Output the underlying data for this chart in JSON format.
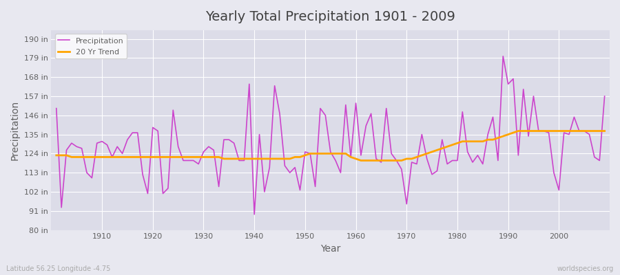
{
  "title": "Yearly Total Precipitation 1901 - 2009",
  "xlabel": "Year",
  "ylabel": "Precipitation",
  "subtitle": "Latitude 56.25 Longitude -4.75",
  "watermark": "worldspecies.org",
  "ylim": [
    80,
    195
  ],
  "yticks": [
    80,
    91,
    102,
    113,
    124,
    135,
    146,
    157,
    168,
    179,
    190
  ],
  "years": [
    1901,
    1902,
    1903,
    1904,
    1905,
    1906,
    1907,
    1908,
    1909,
    1910,
    1911,
    1912,
    1913,
    1914,
    1915,
    1916,
    1917,
    1918,
    1919,
    1920,
    1921,
    1922,
    1923,
    1924,
    1925,
    1926,
    1927,
    1928,
    1929,
    1930,
    1931,
    1932,
    1933,
    1934,
    1935,
    1936,
    1937,
    1938,
    1939,
    1940,
    1941,
    1942,
    1943,
    1944,
    1945,
    1946,
    1947,
    1948,
    1949,
    1950,
    1951,
    1952,
    1953,
    1954,
    1955,
    1956,
    1957,
    1958,
    1959,
    1960,
    1961,
    1962,
    1963,
    1964,
    1965,
    1966,
    1967,
    1968,
    1969,
    1970,
    1971,
    1972,
    1973,
    1974,
    1975,
    1976,
    1977,
    1978,
    1979,
    1980,
    1981,
    1982,
    1983,
    1984,
    1985,
    1986,
    1987,
    1988,
    1989,
    1990,
    1991,
    1992,
    1993,
    1994,
    1995,
    1996,
    1997,
    1998,
    1999,
    2000,
    2001,
    2002,
    2003,
    2004,
    2005,
    2006,
    2007,
    2008,
    2009
  ],
  "precip": [
    150,
    93,
    126,
    130,
    128,
    127,
    113,
    110,
    130,
    131,
    129,
    122,
    128,
    124,
    132,
    136,
    136,
    112,
    101,
    139,
    137,
    101,
    104,
    149,
    128,
    120,
    120,
    120,
    118,
    125,
    128,
    126,
    105,
    132,
    132,
    130,
    120,
    120,
    164,
    89,
    135,
    102,
    116,
    163,
    147,
    117,
    113,
    116,
    103,
    125,
    124,
    105,
    150,
    146,
    125,
    120,
    113,
    152,
    122,
    153,
    123,
    140,
    147,
    121,
    119,
    150,
    124,
    120,
    115,
    95,
    119,
    118,
    135,
    121,
    112,
    114,
    132,
    118,
    120,
    120,
    148,
    125,
    119,
    123,
    118,
    135,
    145,
    120,
    180,
    164,
    167,
    123,
    161,
    134,
    157,
    137,
    137,
    136,
    113,
    103,
    136,
    135,
    145,
    137,
    137,
    135,
    122,
    120,
    157
  ],
  "trend": [
    123,
    123,
    123,
    122,
    122,
    122,
    122,
    122,
    122,
    122,
    122,
    122,
    122,
    122,
    122,
    122,
    122,
    122,
    122,
    122,
    122,
    122,
    122,
    122,
    122,
    122,
    122,
    122,
    122,
    122,
    122,
    122,
    122,
    121,
    121,
    121,
    121,
    121,
    121,
    121,
    121,
    121,
    121,
    121,
    121,
    121,
    121,
    122,
    122,
    123,
    124,
    124,
    124,
    124,
    124,
    124,
    124,
    124,
    122,
    121,
    120,
    120,
    120,
    120,
    120,
    120,
    120,
    120,
    120,
    121,
    121,
    122,
    123,
    124,
    125,
    126,
    127,
    128,
    129,
    130,
    131,
    131,
    131,
    131,
    131,
    132,
    132,
    133,
    134,
    135,
    136,
    137,
    137,
    137,
    137,
    137,
    137,
    137,
    137,
    137,
    137,
    137,
    137,
    137,
    137,
    137,
    137,
    137,
    137
  ],
  "precip_color": "#CC44CC",
  "trend_color": "#FFA500",
  "bg_color": "#E8E8F0",
  "plot_bg_color": "#DCDCE8",
  "grid_color": "#FFFFFF",
  "title_color": "#404040",
  "axis_color": "#606060",
  "legend_bg": "#FFFFFF"
}
